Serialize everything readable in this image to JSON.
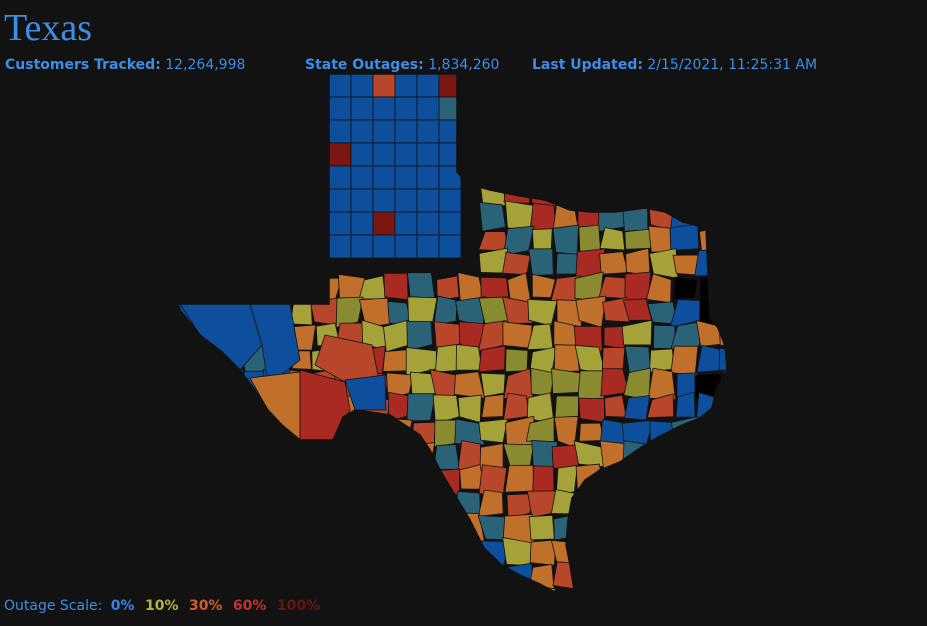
{
  "header": {
    "title": "Texas",
    "customers_tracked": {
      "label": "Customers Tracked:",
      "value": "12,264,998"
    },
    "state_outages": {
      "label": "State Outages:",
      "value": "1,834,260"
    },
    "last_updated": {
      "label": "Last Updated:",
      "value": "2/15/2021, 11:25:31 AM"
    }
  },
  "legend": {
    "label": "Outage Scale:",
    "items": [
      {
        "text": "0%",
        "color": "#2f86f0"
      },
      {
        "text": "10%",
        "color": "#b4b23a"
      },
      {
        "text": "30%",
        "color": "#d45a2c"
      },
      {
        "text": "60%",
        "color": "#c8302a"
      },
      {
        "text": "100%",
        "color": "#6a1610"
      }
    ]
  },
  "map": {
    "region": "Texas",
    "fill_palette": {
      "blue": "#0d4f9c",
      "teal": "#2a6378",
      "olive": "#8a8a30",
      "yellow_olive": "#a6a23a",
      "orange": "#c0702a",
      "red_orange": "#b8462a",
      "red": "#a82a22",
      "dark_red": "#7a1712",
      "black": "#000000"
    }
  }
}
